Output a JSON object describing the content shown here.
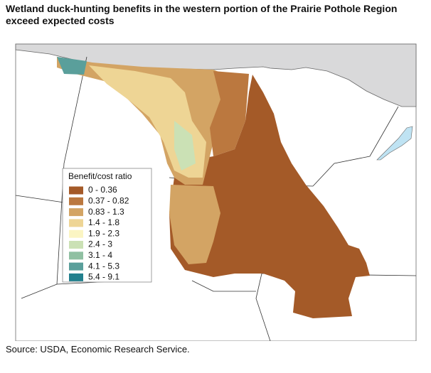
{
  "header": {
    "title": "Wetland duck-hunting benefits in the western portion of the Prairie Pothole Region exceed expected costs"
  },
  "legend": {
    "title": "Benefit/cost ratio",
    "items": [
      {
        "label": "0 - 0.36",
        "color": "#a45a28"
      },
      {
        "label": "0.37 - 0.82",
        "color": "#bb783f"
      },
      {
        "label": "0.83 - 1.3",
        "color": "#d3a464"
      },
      {
        "label": "1.4 - 1.8",
        "color": "#eed595"
      },
      {
        "label": "1.9 - 2.3",
        "color": "#fbf5c3"
      },
      {
        "label": "2.4 - 3",
        "color": "#cbe1b5"
      },
      {
        "label": "3.1 - 4",
        "color": "#90c0a2"
      },
      {
        "label": "4.1 - 5.3",
        "color": "#5a9f9b"
      },
      {
        "label": "5.4 - 9.1",
        "color": "#22808d"
      }
    ]
  },
  "footer": {
    "source": "Source: USDA, Economic Research Service."
  }
}
